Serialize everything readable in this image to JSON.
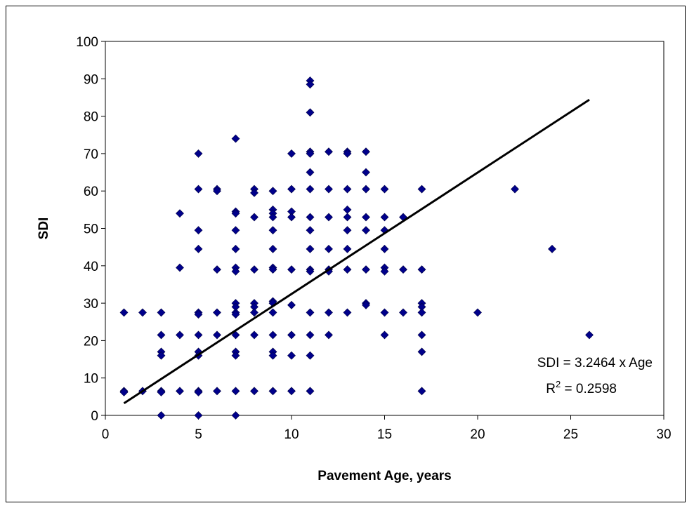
{
  "chart_data": {
    "type": "scatter",
    "xlabel": "Pavement Age, years",
    "ylabel": "SDI",
    "xlim": [
      0,
      30
    ],
    "ylim": [
      0,
      100
    ],
    "xticks": [
      "0",
      "5",
      "10",
      "15",
      "20",
      "25",
      "30"
    ],
    "yticks": [
      "0",
      "10",
      "20",
      "30",
      "40",
      "50",
      "60",
      "70",
      "80",
      "90",
      "100"
    ],
    "grid": false,
    "marker_color": "#00008B",
    "trendline": {
      "slope": 3.2464,
      "intercept": 0,
      "x_range": [
        1,
        26
      ],
      "color": "#000000"
    },
    "annotations": {
      "equation": "SDI = 3.2464 x Age",
      "r2_prefix": "R",
      "r2_sup": "2",
      "r2_suffix": " = 0.2598"
    },
    "series": [
      {
        "points": [
          [
            1,
            27.5
          ],
          [
            1,
            6.5
          ],
          [
            1,
            6.2
          ],
          [
            2,
            27.5
          ],
          [
            2,
            6.5
          ],
          [
            3,
            27.5
          ],
          [
            3,
            21.5
          ],
          [
            3,
            17
          ],
          [
            3,
            16
          ],
          [
            3,
            6.5
          ],
          [
            3,
            6.2
          ],
          [
            3,
            0
          ],
          [
            4,
            54
          ],
          [
            4,
            39.5
          ],
          [
            4,
            21.5
          ],
          [
            4,
            6.5
          ],
          [
            5,
            70
          ],
          [
            5,
            60.5
          ],
          [
            5,
            49.5
          ],
          [
            5,
            44.5
          ],
          [
            5,
            27.5
          ],
          [
            5,
            27
          ],
          [
            5,
            21.5
          ],
          [
            5,
            17
          ],
          [
            5,
            16
          ],
          [
            5,
            6.5
          ],
          [
            5,
            6.2
          ],
          [
            5,
            0
          ],
          [
            6,
            60.5
          ],
          [
            6,
            60
          ],
          [
            6,
            39
          ],
          [
            6,
            27.5
          ],
          [
            6,
            21.5
          ],
          [
            6,
            6.5
          ],
          [
            7,
            74
          ],
          [
            7,
            54.5
          ],
          [
            7,
            54
          ],
          [
            7,
            49.5
          ],
          [
            7,
            44.5
          ],
          [
            7,
            39.5
          ],
          [
            7,
            38.5
          ],
          [
            7,
            30
          ],
          [
            7,
            29
          ],
          [
            7,
            27.5
          ],
          [
            7,
            27
          ],
          [
            7,
            21.5
          ],
          [
            7,
            17
          ],
          [
            7,
            16
          ],
          [
            7,
            6.5
          ],
          [
            7,
            0
          ],
          [
            8,
            60.5
          ],
          [
            8,
            59.5
          ],
          [
            8,
            53
          ],
          [
            8,
            39
          ],
          [
            8,
            30
          ],
          [
            8,
            29
          ],
          [
            8,
            27.5
          ],
          [
            8,
            21.5
          ],
          [
            8,
            6.5
          ],
          [
            9,
            60
          ],
          [
            9,
            55
          ],
          [
            9,
            54
          ],
          [
            9,
            53
          ],
          [
            9,
            49.5
          ],
          [
            9,
            44.5
          ],
          [
            9,
            39.5
          ],
          [
            9,
            39
          ],
          [
            9,
            30.5
          ],
          [
            9,
            30
          ],
          [
            9,
            27.5
          ],
          [
            9,
            21.5
          ],
          [
            9,
            17
          ],
          [
            9,
            16
          ],
          [
            9,
            6.5
          ],
          [
            10,
            70
          ],
          [
            10,
            60.5
          ],
          [
            10,
            54.5
          ],
          [
            10,
            53
          ],
          [
            10,
            39
          ],
          [
            10,
            29.5
          ],
          [
            10,
            21.5
          ],
          [
            10,
            16
          ],
          [
            10,
            6.5
          ],
          [
            11,
            89.5
          ],
          [
            11,
            88.5
          ],
          [
            11,
            81
          ],
          [
            11,
            70.5
          ],
          [
            11,
            70
          ],
          [
            11,
            65
          ],
          [
            11,
            60.5
          ],
          [
            11,
            53
          ],
          [
            11,
            49.5
          ],
          [
            11,
            44.5
          ],
          [
            11,
            39
          ],
          [
            11,
            38.5
          ],
          [
            11,
            27.5
          ],
          [
            11,
            21.5
          ],
          [
            11,
            16
          ],
          [
            11,
            6.5
          ],
          [
            12,
            70.5
          ],
          [
            12,
            60.5
          ],
          [
            12,
            53
          ],
          [
            12,
            44.5
          ],
          [
            12,
            39
          ],
          [
            12,
            38.5
          ],
          [
            12,
            27.5
          ],
          [
            12,
            21.5
          ],
          [
            13,
            70.5
          ],
          [
            13,
            70
          ],
          [
            13,
            60.5
          ],
          [
            13,
            55
          ],
          [
            13,
            53
          ],
          [
            13,
            49.5
          ],
          [
            13,
            44.5
          ],
          [
            13,
            39
          ],
          [
            13,
            27.5
          ],
          [
            14,
            70.5
          ],
          [
            14,
            65
          ],
          [
            14,
            60.5
          ],
          [
            14,
            53
          ],
          [
            14,
            49.5
          ],
          [
            14,
            39
          ],
          [
            14,
            30
          ],
          [
            14,
            29.5
          ],
          [
            15,
            60.5
          ],
          [
            15,
            53
          ],
          [
            15,
            49.5
          ],
          [
            15,
            44.5
          ],
          [
            15,
            39.5
          ],
          [
            15,
            38.5
          ],
          [
            15,
            27.5
          ],
          [
            15,
            21.5
          ],
          [
            16,
            53
          ],
          [
            16,
            39
          ],
          [
            16,
            27.5
          ],
          [
            17,
            60.5
          ],
          [
            17,
            39
          ],
          [
            17,
            30
          ],
          [
            17,
            29
          ],
          [
            17,
            27.5
          ],
          [
            17,
            21.5
          ],
          [
            17,
            17
          ],
          [
            17,
            6.5
          ],
          [
            20,
            27.5
          ],
          [
            22,
            60.5
          ],
          [
            24,
            44.5
          ],
          [
            26,
            21.5
          ]
        ]
      }
    ]
  }
}
